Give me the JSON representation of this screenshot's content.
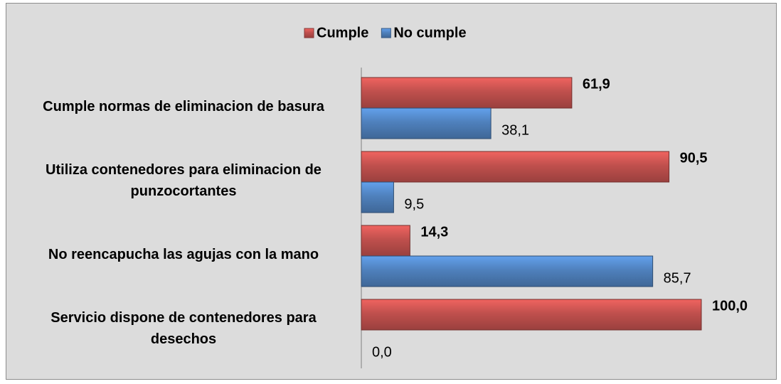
{
  "chart_data": {
    "type": "hbar",
    "categories": [
      "Cumple normas de eliminacion de basura",
      "Utiliza contenedores para eliminacion de punzocortantes",
      "No reencapucha las agujas con la mano",
      "Servicio dispone de contenedores para desechos"
    ],
    "series": [
      {
        "name": "Cumple",
        "color": "#c0504d",
        "values": [
          61.9,
          90.5,
          14.3,
          100.0
        ],
        "value_labels": [
          "61,9",
          "90,5",
          "14,3",
          "100,0"
        ]
      },
      {
        "name": "No cumple",
        "color": "#4f81bd",
        "values": [
          38.1,
          9.5,
          85.7,
          0.0
        ],
        "value_labels": [
          "38,1",
          "9,5",
          "85,7",
          "0,0"
        ]
      }
    ],
    "xlim": [
      0,
      100
    ],
    "legend": "top"
  }
}
